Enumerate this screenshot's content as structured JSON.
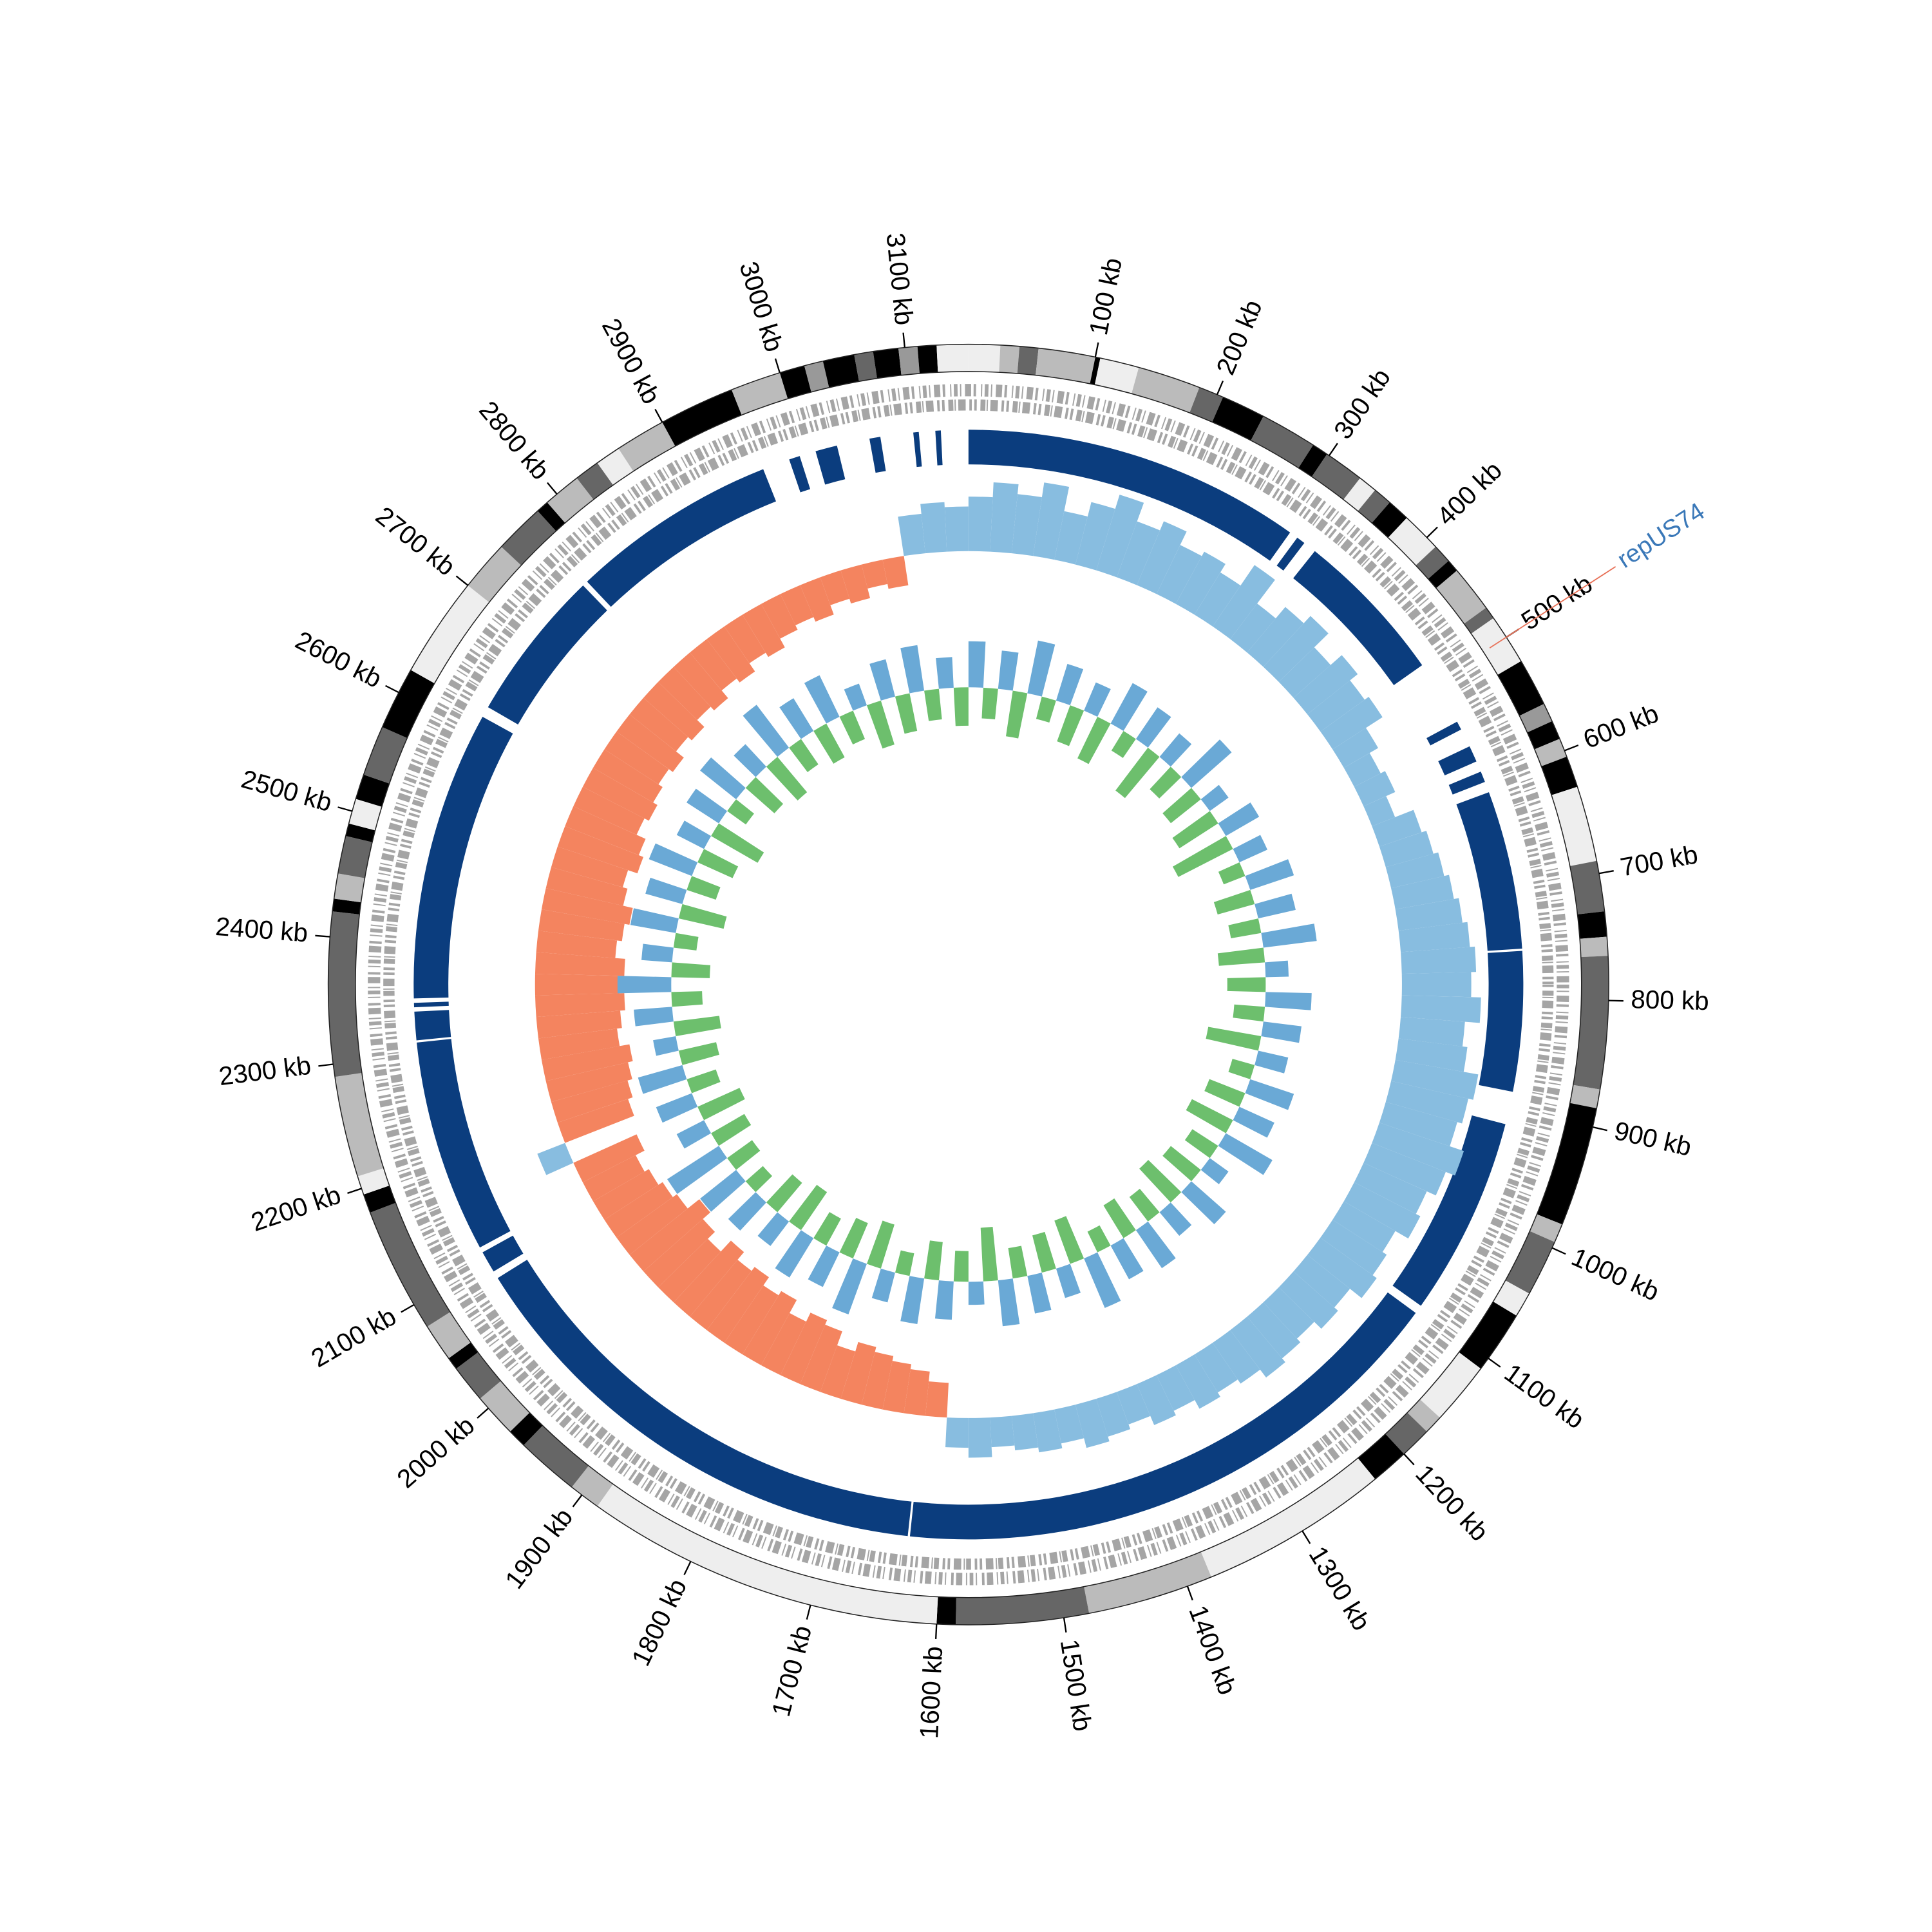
{
  "chart_data": {
    "type": "circular",
    "xlim": [
      0,
      3150
    ],
    "xticks": [
      {
        "value": 100,
        "label": "100 kb"
      },
      {
        "value": 200,
        "label": "200 kb"
      },
      {
        "value": 300,
        "label": "300 kb"
      },
      {
        "value": 400,
        "label": "400 kb"
      },
      {
        "value": 500,
        "label": "500 kb"
      },
      {
        "value": 600,
        "label": "600 kb"
      },
      {
        "value": 700,
        "label": "700 kb"
      },
      {
        "value": 800,
        "label": "800 kb"
      },
      {
        "value": 900,
        "label": "900 kb"
      },
      {
        "value": 1000,
        "label": "1000 kb"
      },
      {
        "value": 1100,
        "label": "1100 kb"
      },
      {
        "value": 1200,
        "label": "1200 kb"
      },
      {
        "value": 1300,
        "label": "1300 kb"
      },
      {
        "value": 1400,
        "label": "1400 kb"
      },
      {
        "value": 1500,
        "label": "1500 kb"
      },
      {
        "value": 1600,
        "label": "1600 kb"
      },
      {
        "value": 1700,
        "label": "1700 kb"
      },
      {
        "value": 1800,
        "label": "1800 kb"
      },
      {
        "value": 1900,
        "label": "1900 kb"
      },
      {
        "value": 2000,
        "label": "2000 kb"
      },
      {
        "value": 2100,
        "label": "2100 kb"
      },
      {
        "value": 2200,
        "label": "2200 kb"
      },
      {
        "value": 2300,
        "label": "2300 kb"
      },
      {
        "value": 2400,
        "label": "2400 kb"
      },
      {
        "value": 2500,
        "label": "2500 kb"
      },
      {
        "value": 2600,
        "label": "2600 kb"
      },
      {
        "value": 2700,
        "label": "2700 kb"
      },
      {
        "value": 2800,
        "label": "2800 kb"
      },
      {
        "value": 2900,
        "label": "2900 kb"
      },
      {
        "value": 3000,
        "label": "3000 kb"
      },
      {
        "value": 3100,
        "label": "3100 kb"
      }
    ],
    "annotation": {
      "text": "repUS74",
      "x": 500,
      "color": "#3a78b8",
      "line_color": "#e8735a"
    },
    "bands": [
      [
        0,
        25,
        "#eee"
      ],
      [
        25,
        40,
        "#bbb"
      ],
      [
        40,
        55,
        "#666"
      ],
      [
        55,
        100,
        "#bbb"
      ],
      [
        100,
        104,
        "#000"
      ],
      [
        104,
        135,
        "#eee"
      ],
      [
        135,
        185,
        "#bbb"
      ],
      [
        185,
        205,
        "#666"
      ],
      [
        205,
        240,
        "#000"
      ],
      [
        240,
        285,
        "#666"
      ],
      [
        285,
        298,
        "#000"
      ],
      [
        298,
        330,
        "#666"
      ],
      [
        330,
        345,
        "#eee"
      ],
      [
        345,
        360,
        "#666"
      ],
      [
        360,
        378,
        "#000"
      ],
      [
        378,
        410,
        "#eee"
      ],
      [
        410,
        425,
        "#666"
      ],
      [
        425,
        435,
        "#000"
      ],
      [
        435,
        472,
        "#bbb"
      ],
      [
        472,
        482,
        "#666"
      ],
      [
        482,
        522,
        "#eee"
      ],
      [
        522,
        560,
        "#000"
      ],
      [
        560,
        575,
        "#999"
      ],
      [
        575,
        590,
        "#000"
      ],
      [
        590,
        605,
        "#bbb"
      ],
      [
        605,
        630,
        "#000"
      ],
      [
        630,
        690,
        "#eee"
      ],
      [
        690,
        730,
        "#666"
      ],
      [
        730,
        750,
        "#000"
      ],
      [
        750,
        765,
        "#bbb"
      ],
      [
        765,
        870,
        "#666"
      ],
      [
        870,
        885,
        "#bbb"
      ],
      [
        885,
        980,
        "#000"
      ],
      [
        980,
        995,
        "#bbb"
      ],
      [
        995,
        1040,
        "#666"
      ],
      [
        1040,
        1060,
        "#eee"
      ],
      [
        1060,
        1110,
        "#000"
      ],
      [
        1110,
        1160,
        "#eee"
      ],
      [
        1160,
        1175,
        "#bbb"
      ],
      [
        1175,
        1200,
        "#666"
      ],
      [
        1200,
        1230,
        "#000"
      ],
      [
        1230,
        1380,
        "#eee"
      ],
      [
        1380,
        1480,
        "#bbb"
      ],
      [
        1480,
        1585,
        "#666"
      ],
      [
        1585,
        1600,
        "#000"
      ],
      [
        1600,
        1885,
        "#eee"
      ],
      [
        1885,
        1910,
        "#bbb"
      ],
      [
        1910,
        1960,
        "#666"
      ],
      [
        1960,
        1975,
        "#000"
      ],
      [
        1975,
        2010,
        "#bbb"
      ],
      [
        2010,
        2040,
        "#666"
      ],
      [
        2040,
        2050,
        "#000"
      ],
      [
        2050,
        2080,
        "#bbb"
      ],
      [
        2080,
        2180,
        "#666"
      ],
      [
        2180,
        2195,
        "#000"
      ],
      [
        2195,
        2210,
        "#eee"
      ],
      [
        2210,
        2290,
        "#bbb"
      ],
      [
        2290,
        2420,
        "#666"
      ],
      [
        2420,
        2430,
        "#000"
      ],
      [
        2430,
        2450,
        "#bbb"
      ],
      [
        2450,
        2480,
        "#666"
      ],
      [
        2480,
        2490,
        "#000"
      ],
      [
        2490,
        2510,
        "#eee"
      ],
      [
        2510,
        2530,
        "#000"
      ],
      [
        2530,
        2570,
        "#666"
      ],
      [
        2570,
        2620,
        "#000"
      ],
      [
        2620,
        2700,
        "#eee"
      ],
      [
        2700,
        2740,
        "#bbb"
      ],
      [
        2740,
        2780,
        "#666"
      ],
      [
        2780,
        2790,
        "#000"
      ],
      [
        2790,
        2820,
        "#bbb"
      ],
      [
        2820,
        2840,
        "#666"
      ],
      [
        2840,
        2860,
        "#eee"
      ],
      [
        2860,
        2900,
        "#bbb"
      ],
      [
        2900,
        2960,
        "#000"
      ],
      [
        2960,
        3000,
        "#bbb"
      ],
      [
        3000,
        3020,
        "#000"
      ],
      [
        3020,
        3035,
        "#999"
      ],
      [
        3035,
        3060,
        "#000"
      ],
      [
        3060,
        3075,
        "#666"
      ],
      [
        3075,
        3095,
        "#000"
      ],
      [
        3095,
        3110,
        "#999"
      ],
      [
        3110,
        3125,
        "#000"
      ],
      [
        3125,
        3150,
        "#eee"
      ]
    ],
    "contigs": {
      "color": "#0b3d7e",
      "blocks": [
        [
          0,
          310
        ],
        [
          318,
          326
        ],
        [
          338,
          480
        ],
        [
          540,
          548
        ],
        [
          565,
          580
        ],
        [
          590,
          600
        ],
        [
          610,
          755
        ],
        [
          757,
          885
        ],
        [
          915,
          1097
        ],
        [
          1105,
          1628
        ],
        [
          1630,
          2083
        ],
        [
          2090,
          2110
        ],
        [
          2115,
          2310
        ],
        [
          2312,
          2338
        ],
        [
          2342,
          2346
        ],
        [
          2350,
          2615
        ],
        [
          2625,
          2765
        ],
        [
          2770,
          2960
        ],
        [
          2985,
          2995
        ],
        [
          3010,
          3030
        ],
        [
          3060,
          3070
        ],
        [
          3100,
          3105
        ],
        [
          3120,
          3125
        ]
      ]
    },
    "x": [
      0,
      25,
      50,
      75,
      100,
      125,
      150,
      175,
      200,
      225,
      250,
      275,
      300,
      325,
      350,
      375,
      400,
      425,
      450,
      475,
      500,
      525,
      550,
      575,
      600,
      625,
      650,
      675,
      700,
      725,
      750,
      775,
      800,
      825,
      850,
      875,
      900,
      925,
      950,
      975,
      1000,
      1025,
      1050,
      1075,
      1100,
      1125,
      1150,
      1175,
      1200,
      1225,
      1250,
      1275,
      1300,
      1325,
      1350,
      1375,
      1400,
      1425,
      1450,
      1475,
      1500,
      1525,
      1550,
      1575,
      1600,
      1625,
      1650,
      1675,
      1700,
      1725,
      1750,
      1775,
      1800,
      1825,
      1850,
      1875,
      1900,
      1925,
      1950,
      1975,
      2000,
      2025,
      2050,
      2075,
      2100,
      2125,
      2150,
      2175,
      2200,
      2225,
      2250,
      2275,
      2300,
      2325,
      2350,
      2375,
      2400,
      2425,
      2450,
      2475,
      2500,
      2525,
      2550,
      2575,
      2600,
      2625,
      2650,
      2675,
      2700,
      2725,
      2750,
      2775,
      2800,
      2825,
      2850,
      2875,
      2900,
      2925,
      2950,
      2975,
      3000,
      3025,
      3050,
      3075,
      3100,
      3125
    ],
    "series": [
      {
        "color": "#88bde0",
        "negative_color": "#f4845f",
        "ylim": [
          -1,
          1
        ],
        "values": [
          0.55,
          0.7,
          0.6,
          0.75,
          0.5,
          0.65,
          0.8,
          0.6,
          0.7,
          0.55,
          0.6,
          0.5,
          0.75,
          0.45,
          0.6,
          0.7,
          0.5,
          0.65,
          0.55,
          0.6,
          0.4,
          0.3,
          0.35,
          0.25,
          0.45,
          0.5,
          0.55,
          0.6,
          0.65,
          0.7,
          0.75,
          0.7,
          0.8,
          0.65,
          0.7,
          0.85,
          0.8,
          0.75,
          0.9,
          0.8,
          0.7,
          0.75,
          0.6,
          0.65,
          0.7,
          0.55,
          0.6,
          0.5,
          0.55,
          0.6,
          0.5,
          0.45,
          0.5,
          0.4,
          0.45,
          0.35,
          0.4,
          0.45,
          0.35,
          0.4,
          0.35,
          0.3,
          0.4,
          0.3,
          -0.35,
          -0.45,
          -0.5,
          -0.55,
          -0.6,
          -0.5,
          -0.65,
          -0.7,
          -0.6,
          -0.75,
          -0.7,
          -0.8,
          -0.75,
          -0.85,
          -0.7,
          -0.8,
          -0.9,
          -0.75,
          -0.7,
          -0.65,
          -0.6,
          -0.7,
          0.3,
          -0.75,
          -0.8,
          -0.85,
          -0.9,
          -0.8,
          -0.85,
          -0.9,
          -0.85,
          -0.9,
          -0.8,
          -0.85,
          -0.9,
          -0.8,
          -0.75,
          -0.85,
          -0.8,
          -0.7,
          -0.75,
          -0.7,
          -0.65,
          -0.7,
          -0.6,
          -0.65,
          -0.55,
          -0.6,
          -0.5,
          -0.55,
          -0.45,
          -0.5,
          -0.4,
          -0.35,
          -0.4,
          -0.3,
          -0.35,
          -0.25,
          -0.3,
          0.4,
          0.5,
          0.45
        ]
      },
      {
        "color": "#6aa9d6",
        "negative_color": "#6dbf6d",
        "ylim": [
          -1,
          1
        ],
        "values": [
          0.6,
          -0.4,
          0.5,
          -0.6,
          0.7,
          -0.3,
          0.5,
          -0.5,
          0.4,
          -0.6,
          0.6,
          -0.3,
          0.5,
          -0.7,
          0.4,
          -0.4,
          0.7,
          -0.5,
          0.3,
          -0.6,
          0.5,
          -0.8,
          0.4,
          -0.3,
          0.6,
          -0.5,
          0.5,
          -0.4,
          0.7,
          -0.6,
          0.3,
          -0.5,
          0.6,
          -0.4,
          0.5,
          -0.7,
          0.4,
          -0.3,
          0.6,
          -0.5,
          0.5,
          -0.6,
          0.7,
          -0.4,
          0.3,
          -0.5,
          0.6,
          -0.6,
          0.4,
          -0.4,
          0.6,
          -0.5,
          0.5,
          -0.3,
          0.7,
          -0.6,
          0.4,
          -0.5,
          0.5,
          -0.4,
          0.6,
          -0.7,
          0.3,
          -0.4,
          0.5,
          -0.5,
          0.6,
          -0.3,
          0.4,
          -0.6,
          0.7,
          -0.5,
          0.5,
          -0.4,
          0.6,
          -0.6,
          0.4,
          -0.5,
          0.5,
          -0.3,
          0.6,
          -0.4,
          0.8,
          -0.5,
          0.4,
          -0.6,
          0.5,
          -0.4,
          0.6,
          -0.5,
          0.3,
          -0.6,
          0.5,
          -0.4,
          0.7,
          -0.5,
          0.4,
          -0.3,
          0.6,
          -0.6,
          0.5,
          -0.4,
          0.6,
          -0.5,
          0.4,
          -0.7,
          0.5,
          -0.3,
          0.6,
          -0.5,
          0.4,
          -0.6,
          0.7,
          -0.4,
          0.5,
          -0.5,
          0.6,
          -0.4,
          0.3,
          -0.6,
          0.5,
          -0.5,
          0.6,
          -0.4,
          0.4,
          -0.5
        ]
      }
    ]
  }
}
